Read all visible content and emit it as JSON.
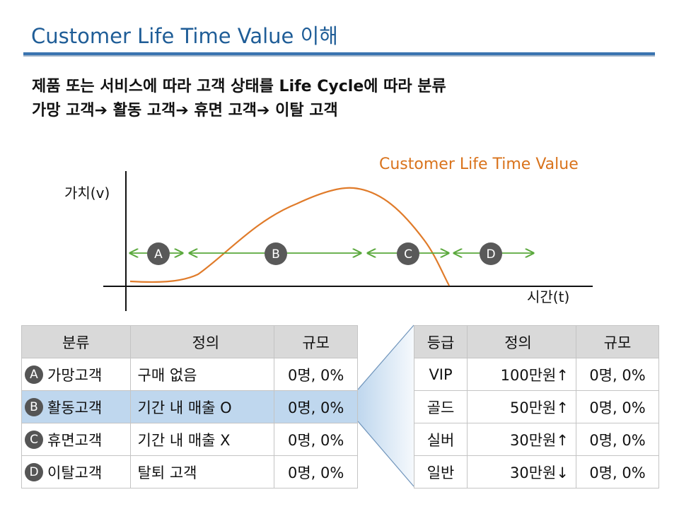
{
  "title": "Customer Life Time Value 이해",
  "description": {
    "line1": "제품 또는 서비스에 따라 고객 상태를 Life Cycle에 따라 분류",
    "line2": "가망 고객➔ 활동 고객➔ 휴면 고객➔ 이탈 고객"
  },
  "diagram": {
    "curve_label": "Customer Life Time Value",
    "y_axis_label": "가치(v)",
    "x_axis_label": "시간(t)",
    "stages": [
      "A",
      "B",
      "C",
      "D"
    ],
    "colors": {
      "curve": "#e07b2a",
      "arrows": "#5aa83c",
      "nodes": "#595959",
      "label": "#d9731c"
    }
  },
  "left_table": {
    "headers": [
      "분류",
      "정의",
      "규모"
    ],
    "rows": [
      {
        "badge": "A",
        "category": "가망고객",
        "definition": "구매 없음",
        "size": "0명, 0%"
      },
      {
        "badge": "B",
        "category": "활동고객",
        "definition": "기간 내 매출 O",
        "size": "0명, 0%"
      },
      {
        "badge": "C",
        "category": "휴면고객",
        "definition": "기간 내 매출 X",
        "size": "0명, 0%"
      },
      {
        "badge": "D",
        "category": "이탈고객",
        "definition": "탈퇴 고객",
        "size": "0명, 0%"
      }
    ]
  },
  "right_table": {
    "headers": [
      "등급",
      "정의",
      "규모"
    ],
    "rows": [
      {
        "grade": "VIP",
        "definition": "100만원",
        "arrow": "↑",
        "size": "0명, 0%"
      },
      {
        "grade": "골드",
        "definition": "50만원",
        "arrow": "↑",
        "size": "0명, 0%"
      },
      {
        "grade": "실버",
        "definition": "30만원",
        "arrow": "↑",
        "size": "0명, 0%"
      },
      {
        "grade": "일반",
        "definition": "30만원",
        "arrow": "↓",
        "size": "0명, 0%"
      }
    ]
  }
}
